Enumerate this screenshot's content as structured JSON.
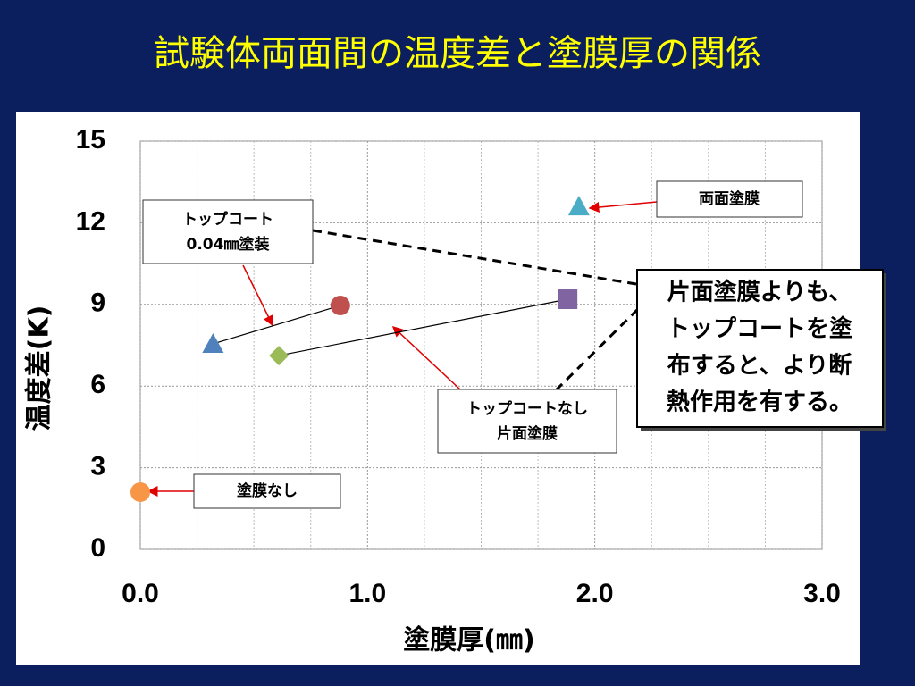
{
  "chart_data": {
    "type": "scatter",
    "title": "試験体両面間の温度差と塗膜厚の関係",
    "x_label": "塗膜厚(㎜)",
    "y_label": "温度差(K)",
    "xlim": [
      0,
      3
    ],
    "ylim": [
      0,
      15
    ],
    "xticks": [
      {
        "value": 0,
        "label": "0.0"
      },
      {
        "value": 1,
        "label": "1.0"
      },
      {
        "value": 2,
        "label": "2.0"
      },
      {
        "value": 3,
        "label": "3.0"
      }
    ],
    "xminor_ticks": [
      0.25,
      0.5,
      0.75,
      1.25,
      1.5,
      1.75,
      2.25,
      2.5,
      2.75
    ],
    "yticks": [
      0,
      3,
      6,
      9,
      12,
      15
    ],
    "grid": true,
    "series": [
      {
        "x": [
          0
        ],
        "values": [
          2.1
        ],
        "markers": [
          "circle"
        ],
        "colors": [
          "#f79646"
        ]
      },
      {
        "x": [
          0.32,
          0.88
        ],
        "values": [
          7.55,
          8.96
        ],
        "markers": [
          "triangle",
          "circle"
        ],
        "colors": [
          "#4f81bd",
          "#c0504d"
        ]
      },
      {
        "x": [
          0.61,
          1.88
        ],
        "values": [
          7.12,
          9.19
        ],
        "markers": [
          "diamond",
          "square"
        ],
        "colors": [
          "#9bbb59",
          "#8064a2"
        ]
      },
      {
        "x": [
          1.93
        ],
        "values": [
          12.6
        ],
        "markers": [
          "triangle"
        ],
        "colors": [
          "#4bacc6"
        ]
      }
    ],
    "annotations": [
      {
        "lines": [
          "塗膜なし"
        ]
      },
      {
        "lines": [
          "トップコート",
          "0.04㎜塗装"
        ]
      },
      {
        "lines": [
          "トップコートなし",
          "片面塗膜"
        ]
      },
      {
        "lines": [
          "両面塗膜"
        ]
      },
      {
        "lines": [
          "片面塗膜よりも、",
          "トップコートを塗",
          "布すると、より断",
          "熱作用を有する。"
        ]
      }
    ]
  }
}
